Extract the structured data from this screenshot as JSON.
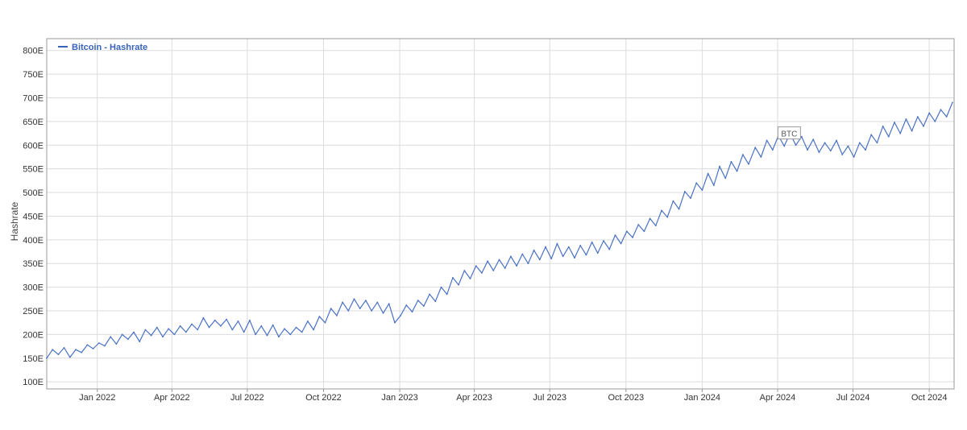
{
  "chart_data": {
    "type": "line",
    "ylabel": "Hashrate",
    "legend": {
      "placement": "top-left",
      "entries": [
        "Bitcoin - Hashrate"
      ]
    },
    "annotation": {
      "text": "BTC",
      "x": "2024-04-15",
      "y": 625
    },
    "grid": true,
    "x_axis": {
      "type": "date",
      "range": [
        "2021-11-01",
        "2024-10-31"
      ]
    },
    "ylim": [
      85,
      825
    ],
    "y_ticks": [
      {
        "value": 100,
        "label": "100E"
      },
      {
        "value": 150,
        "label": "150E"
      },
      {
        "value": 200,
        "label": "200E"
      },
      {
        "value": 250,
        "label": "250E"
      },
      {
        "value": 300,
        "label": "300E"
      },
      {
        "value": 350,
        "label": "350E"
      },
      {
        "value": 400,
        "label": "400E"
      },
      {
        "value": 450,
        "label": "450E"
      },
      {
        "value": 500,
        "label": "500E"
      },
      {
        "value": 550,
        "label": "550E"
      },
      {
        "value": 600,
        "label": "600E"
      },
      {
        "value": 650,
        "label": "650E"
      },
      {
        "value": 700,
        "label": "700E"
      },
      {
        "value": 750,
        "label": "750E"
      },
      {
        "value": 800,
        "label": "800E"
      }
    ],
    "x_ticks": [
      {
        "date": "2022-01-01",
        "label": "Jan 2022"
      },
      {
        "date": "2022-04-01",
        "label": "Apr 2022"
      },
      {
        "date": "2022-07-01",
        "label": "Jul 2022"
      },
      {
        "date": "2022-10-01",
        "label": "Oct 2022"
      },
      {
        "date": "2023-01-01",
        "label": "Jan 2023"
      },
      {
        "date": "2023-04-01",
        "label": "Apr 2023"
      },
      {
        "date": "2023-07-01",
        "label": "Jul 2023"
      },
      {
        "date": "2023-10-01",
        "label": "Oct 2023"
      },
      {
        "date": "2024-01-01",
        "label": "Jan 2024"
      },
      {
        "date": "2024-04-01",
        "label": "Apr 2024"
      },
      {
        "date": "2024-07-01",
        "label": "Jul 2024"
      },
      {
        "date": "2024-10-01",
        "label": "Oct 2024"
      }
    ],
    "series": [
      {
        "name": "Bitcoin - Hashrate",
        "color": "#4a72c4",
        "points": [
          [
            "2021-11-01",
            150
          ],
          [
            "2021-11-08",
            168
          ],
          [
            "2021-11-15",
            158
          ],
          [
            "2021-11-22",
            172
          ],
          [
            "2021-11-29",
            152
          ],
          [
            "2021-12-06",
            168
          ],
          [
            "2021-12-13",
            162
          ],
          [
            "2021-12-20",
            178
          ],
          [
            "2021-12-27",
            170
          ],
          [
            "2022-01-03",
            182
          ],
          [
            "2022-01-10",
            176
          ],
          [
            "2022-01-17",
            195
          ],
          [
            "2022-01-24",
            180
          ],
          [
            "2022-01-31",
            200
          ],
          [
            "2022-02-07",
            190
          ],
          [
            "2022-02-14",
            205
          ],
          [
            "2022-02-21",
            185
          ],
          [
            "2022-02-28",
            210
          ],
          [
            "2022-03-07",
            198
          ],
          [
            "2022-03-14",
            215
          ],
          [
            "2022-03-21",
            195
          ],
          [
            "2022-03-28",
            212
          ],
          [
            "2022-04-04",
            200
          ],
          [
            "2022-04-11",
            218
          ],
          [
            "2022-04-18",
            205
          ],
          [
            "2022-04-25",
            222
          ],
          [
            "2022-05-02",
            210
          ],
          [
            "2022-05-09",
            235
          ],
          [
            "2022-05-16",
            215
          ],
          [
            "2022-05-23",
            230
          ],
          [
            "2022-05-30",
            218
          ],
          [
            "2022-06-06",
            232
          ],
          [
            "2022-06-13",
            210
          ],
          [
            "2022-06-20",
            228
          ],
          [
            "2022-06-27",
            205
          ],
          [
            "2022-07-04",
            230
          ],
          [
            "2022-07-11",
            200
          ],
          [
            "2022-07-18",
            218
          ],
          [
            "2022-07-25",
            198
          ],
          [
            "2022-08-01",
            220
          ],
          [
            "2022-08-08",
            195
          ],
          [
            "2022-08-15",
            212
          ],
          [
            "2022-08-22",
            200
          ],
          [
            "2022-08-29",
            215
          ],
          [
            "2022-09-05",
            205
          ],
          [
            "2022-09-12",
            228
          ],
          [
            "2022-09-19",
            210
          ],
          [
            "2022-09-26",
            238
          ],
          [
            "2022-10-03",
            225
          ],
          [
            "2022-10-10",
            255
          ],
          [
            "2022-10-17",
            240
          ],
          [
            "2022-10-24",
            268
          ],
          [
            "2022-10-31",
            250
          ],
          [
            "2022-11-07",
            275
          ],
          [
            "2022-11-14",
            255
          ],
          [
            "2022-11-21",
            272
          ],
          [
            "2022-11-28",
            250
          ],
          [
            "2022-12-05",
            268
          ],
          [
            "2022-12-12",
            245
          ],
          [
            "2022-12-19",
            265
          ],
          [
            "2022-12-26",
            225
          ],
          [
            "2023-01-02",
            240
          ],
          [
            "2023-01-09",
            262
          ],
          [
            "2023-01-16",
            248
          ],
          [
            "2023-01-23",
            272
          ],
          [
            "2023-01-30",
            260
          ],
          [
            "2023-02-06",
            285
          ],
          [
            "2023-02-13",
            270
          ],
          [
            "2023-02-20",
            300
          ],
          [
            "2023-02-27",
            285
          ],
          [
            "2023-03-06",
            320
          ],
          [
            "2023-03-13",
            305
          ],
          [
            "2023-03-20",
            335
          ],
          [
            "2023-03-27",
            318
          ],
          [
            "2023-04-03",
            345
          ],
          [
            "2023-04-10",
            330
          ],
          [
            "2023-04-17",
            355
          ],
          [
            "2023-04-24",
            335
          ],
          [
            "2023-05-01",
            358
          ],
          [
            "2023-05-08",
            340
          ],
          [
            "2023-05-15",
            365
          ],
          [
            "2023-05-22",
            345
          ],
          [
            "2023-05-29",
            370
          ],
          [
            "2023-06-05",
            350
          ],
          [
            "2023-06-12",
            378
          ],
          [
            "2023-06-19",
            358
          ],
          [
            "2023-06-26",
            385
          ],
          [
            "2023-07-03",
            360
          ],
          [
            "2023-07-10",
            392
          ],
          [
            "2023-07-17",
            365
          ],
          [
            "2023-07-24",
            385
          ],
          [
            "2023-07-31",
            362
          ],
          [
            "2023-08-07",
            388
          ],
          [
            "2023-08-14",
            368
          ],
          [
            "2023-08-21",
            395
          ],
          [
            "2023-08-28",
            372
          ],
          [
            "2023-09-04",
            398
          ],
          [
            "2023-09-11",
            380
          ],
          [
            "2023-09-18",
            410
          ],
          [
            "2023-09-25",
            392
          ],
          [
            "2023-10-02",
            418
          ],
          [
            "2023-10-09",
            405
          ],
          [
            "2023-10-16",
            432
          ],
          [
            "2023-10-23",
            418
          ],
          [
            "2023-10-30",
            445
          ],
          [
            "2023-11-06",
            430
          ],
          [
            "2023-11-13",
            462
          ],
          [
            "2023-11-20",
            448
          ],
          [
            "2023-11-27",
            482
          ],
          [
            "2023-12-04",
            465
          ],
          [
            "2023-12-11",
            502
          ],
          [
            "2023-12-18",
            488
          ],
          [
            "2023-12-25",
            520
          ],
          [
            "2024-01-01",
            505
          ],
          [
            "2024-01-08",
            540
          ],
          [
            "2024-01-15",
            515
          ],
          [
            "2024-01-22",
            555
          ],
          [
            "2024-01-29",
            530
          ],
          [
            "2024-02-05",
            565
          ],
          [
            "2024-02-12",
            545
          ],
          [
            "2024-02-19",
            580
          ],
          [
            "2024-02-26",
            560
          ],
          [
            "2024-03-05",
            595
          ],
          [
            "2024-03-12",
            575
          ],
          [
            "2024-03-19",
            610
          ],
          [
            "2024-03-26",
            590
          ],
          [
            "2024-04-02",
            620
          ],
          [
            "2024-04-09",
            598
          ],
          [
            "2024-04-16",
            625
          ],
          [
            "2024-04-23",
            600
          ],
          [
            "2024-04-30",
            618
          ],
          [
            "2024-05-07",
            590
          ],
          [
            "2024-05-14",
            612
          ],
          [
            "2024-05-21",
            585
          ],
          [
            "2024-05-28",
            605
          ],
          [
            "2024-06-04",
            588
          ],
          [
            "2024-06-11",
            610
          ],
          [
            "2024-06-18",
            580
          ],
          [
            "2024-06-25",
            598
          ],
          [
            "2024-07-02",
            575
          ],
          [
            "2024-07-09",
            605
          ],
          [
            "2024-07-16",
            590
          ],
          [
            "2024-07-23",
            622
          ],
          [
            "2024-07-30",
            605
          ],
          [
            "2024-08-06",
            640
          ],
          [
            "2024-08-13",
            618
          ],
          [
            "2024-08-20",
            648
          ],
          [
            "2024-08-27",
            625
          ],
          [
            "2024-09-03",
            655
          ],
          [
            "2024-09-10",
            630
          ],
          [
            "2024-09-17",
            660
          ],
          [
            "2024-09-24",
            640
          ],
          [
            "2024-10-01",
            668
          ],
          [
            "2024-10-08",
            650
          ],
          [
            "2024-10-15",
            675
          ],
          [
            "2024-10-22",
            660
          ],
          [
            "2024-10-29",
            690
          ]
        ]
      }
    ]
  }
}
